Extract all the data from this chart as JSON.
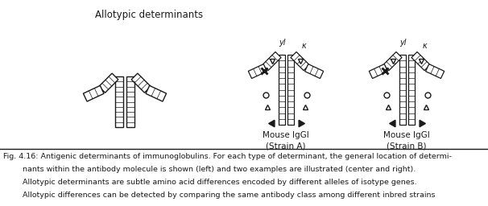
{
  "title_text": "Allotypic determinants",
  "label_center": "Mouse IgGl\n(Strain A)",
  "label_right": "Mouse IgGl\n(Strain B)",
  "bg_color": "#ffffff",
  "line_color": "#1a1a1a",
  "caption_fontsize": 6.8,
  "label_fontsize": 7.5,
  "title_fontsize": 8.5,
  "caption_lines": [
    "Fig. 4.16: Antigenic determinants of immunoglobulins. For each type of determinant, the general location of determi-",
    "        nants within the antibody molecule is shown (left) and two examples are illustrated (center and right).",
    "        Allotypic determinants are subtle amino acid differences encoded by different alleles of isotype genes.",
    "        Allotypic differences can be detected by comparing the same antibody class among different inbred strains"
  ]
}
